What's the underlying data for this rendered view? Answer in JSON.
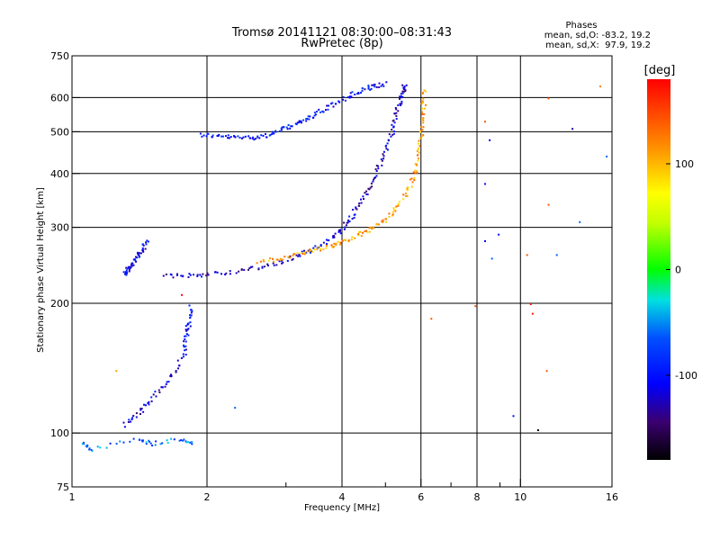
{
  "chart_data": {
    "type": "scatter",
    "title": "Tromsø 20141121 08:30:00–08:31:43",
    "subtitle": "RwPretec (8p)",
    "xlabel": "Frequency [MHz]",
    "ylabel": "Stationary phase Virtual Height [km]",
    "xscale": "log",
    "yscale": "log",
    "xlim": [
      1,
      16
    ],
    "ylim": [
      75,
      750
    ],
    "x_major_ticks": [
      1,
      2,
      4,
      6,
      8,
      10,
      16
    ],
    "x_minor_ticks": [
      3,
      5,
      7,
      9
    ],
    "y_major_ticks": [
      75,
      100,
      200,
      300,
      400,
      500,
      600,
      750
    ],
    "grid": true,
    "phase_stats": {
      "heading": "Phases",
      "line_o": "mean, sd,O: -83.2, 19.2",
      "line_x": "mean, sd,X:  97.9, 19.2"
    },
    "colorbar": {
      "label": "[deg]",
      "range": [
        -180,
        180
      ],
      "ticks": [
        100,
        0,
        -100
      ],
      "colormap": "rainbow"
    },
    "traces": [
      {
        "x": [
          1.92,
          2.1,
          2.3,
          2.5,
          2.7,
          2.9,
          3.1,
          3.3,
          3.5,
          3.8,
          4.1,
          4.4,
          4.7,
          5.0
        ],
        "y": [
          495,
          490,
          487,
          487,
          492,
          505,
          520,
          535,
          555,
          580,
          605,
          625,
          640,
          648
        ],
        "phase": -100
      },
      {
        "x": [
          1.6,
          1.8,
          2.0,
          2.3,
          2.6,
          2.9,
          3.2,
          3.5,
          3.8,
          4.0,
          4.2,
          4.4,
          4.6,
          4.8,
          5.0,
          5.15,
          5.25,
          5.35,
          5.45,
          5.5
        ],
        "y": [
          232,
          233,
          235,
          238,
          243,
          250,
          260,
          272,
          285,
          300,
          320,
          345,
          375,
          410,
          455,
          500,
          545,
          590,
          625,
          645
        ],
        "phase": -120
      },
      {
        "x": [
          2.6,
          2.9,
          3.2,
          3.5,
          3.8,
          4.0,
          4.3,
          4.6,
          4.9,
          5.2,
          5.5,
          5.7,
          5.85,
          5.95,
          6.0,
          6.05,
          6.08
        ],
        "y": [
          250,
          255,
          262,
          268,
          274,
          280,
          288,
          297,
          310,
          328,
          355,
          385,
          420,
          470,
          520,
          580,
          640
        ],
        "phase": 110
      },
      {
        "x": [
          1.3,
          1.33,
          1.36,
          1.4,
          1.43,
          1.46
        ],
        "y": [
          235,
          240,
          248,
          258,
          268,
          280
        ],
        "phase": -110
      },
      {
        "x": [
          1.3,
          1.4,
          1.5,
          1.6,
          1.7,
          1.8
        ],
        "y": [
          105,
          112,
          120,
          130,
          142,
          158
        ],
        "phase": -115
      },
      {
        "x": [
          1.78,
          1.8,
          1.82,
          1.84
        ],
        "y": [
          160,
          172,
          185,
          198
        ],
        "phase": -100
      },
      {
        "x": [
          1.05,
          1.1,
          1.4,
          1.5,
          1.75,
          1.85
        ],
        "y": [
          95,
          92,
          97,
          95,
          97,
          95
        ],
        "phase": -60
      }
    ],
    "scatter_points": [
      {
        "x": 8.3,
        "y": 530,
        "phase": 140
      },
      {
        "x": 8.5,
        "y": 480,
        "phase": -110
      },
      {
        "x": 8.3,
        "y": 380,
        "phase": -100
      },
      {
        "x": 8.3,
        "y": 280,
        "phase": -110
      },
      {
        "x": 8.6,
        "y": 255,
        "phase": -60
      },
      {
        "x": 10.3,
        "y": 260,
        "phase": 140
      },
      {
        "x": 10.5,
        "y": 200,
        "phase": 170
      },
      {
        "x": 10.6,
        "y": 190,
        "phase": 170
      },
      {
        "x": 11.5,
        "y": 600,
        "phase": 140
      },
      {
        "x": 11.5,
        "y": 340,
        "phase": 140
      },
      {
        "x": 11.4,
        "y": 140,
        "phase": 140
      },
      {
        "x": 12.0,
        "y": 260,
        "phase": -60
      },
      {
        "x": 13.0,
        "y": 510,
        "phase": -130
      },
      {
        "x": 13.5,
        "y": 310,
        "phase": -60
      },
      {
        "x": 15.5,
        "y": 440,
        "phase": -60
      },
      {
        "x": 15.0,
        "y": 640,
        "phase": 120
      },
      {
        "x": 7.9,
        "y": 198,
        "phase": 140
      },
      {
        "x": 6.3,
        "y": 185,
        "phase": 140
      },
      {
        "x": 8.9,
        "y": 290,
        "phase": -100
      },
      {
        "x": 9.6,
        "y": 110,
        "phase": -100
      },
      {
        "x": 10.9,
        "y": 102,
        "phase": -180
      },
      {
        "x": 1.75,
        "y": 210,
        "phase": 180
      },
      {
        "x": 1.25,
        "y": 140,
        "phase": 110
      },
      {
        "x": 2.3,
        "y": 115,
        "phase": -60
      }
    ]
  }
}
